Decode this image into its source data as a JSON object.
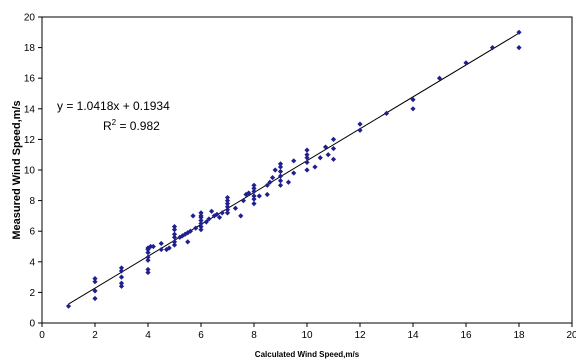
{
  "chart_data": {
    "type": "scatter",
    "title": "",
    "xlabel": "Calculated Wind Speed,m/s",
    "ylabel": "Measured Wind Speed,m/s",
    "xlim": [
      0,
      20
    ],
    "ylim": [
      0,
      20
    ],
    "xticks": [
      0,
      2,
      4,
      6,
      8,
      10,
      12,
      14,
      16,
      18,
      20
    ],
    "yticks": [
      0,
      2,
      4,
      6,
      8,
      10,
      12,
      14,
      16,
      18,
      20
    ],
    "grid": false,
    "legend": "none",
    "marker_color": "#1f1f8f",
    "line_color": "#000000",
    "trendline": {
      "slope": 1.0418,
      "intercept": 0.1934,
      "x_range": [
        1,
        18
      ]
    },
    "equation_text": "y = 1.0418x + 0.1934",
    "r2_label": "R",
    "r2_sup": "2",
    "r2_value_text": " = 0.982",
    "series": [
      {
        "points": [
          [
            1,
            1.1
          ],
          [
            2,
            1.6
          ],
          [
            2,
            2.1
          ],
          [
            2,
            2.7
          ],
          [
            2,
            2.9
          ],
          [
            3,
            2.4
          ],
          [
            3,
            2.6
          ],
          [
            3,
            3.0
          ],
          [
            3,
            3.4
          ],
          [
            3,
            3.6
          ],
          [
            4,
            3.3
          ],
          [
            4,
            3.5
          ],
          [
            4,
            4.1
          ],
          [
            4,
            4.3
          ],
          [
            4,
            4.6
          ],
          [
            4,
            4.8
          ],
          [
            4,
            4.9
          ],
          [
            4.1,
            5.0
          ],
          [
            4.2,
            5.0
          ],
          [
            4.5,
            4.8
          ],
          [
            4.5,
            5.2
          ],
          [
            4.7,
            4.8
          ],
          [
            4.8,
            4.9
          ],
          [
            5,
            5.1
          ],
          [
            5,
            5.3
          ],
          [
            5,
            5.6
          ],
          [
            5,
            5.8
          ],
          [
            5,
            6.1
          ],
          [
            5,
            6.3
          ],
          [
            5.2,
            5.6
          ],
          [
            5.3,
            5.7
          ],
          [
            5.4,
            5.8
          ],
          [
            5.5,
            5.9
          ],
          [
            5.5,
            5.3
          ],
          [
            5.6,
            6.0
          ],
          [
            5.7,
            7.0
          ],
          [
            5.8,
            6.2
          ],
          [
            6,
            6.1
          ],
          [
            6,
            6.3
          ],
          [
            6,
            6.5
          ],
          [
            6,
            6.7
          ],
          [
            6,
            6.9
          ],
          [
            6,
            7.0
          ],
          [
            6,
            7.2
          ],
          [
            6.2,
            6.6
          ],
          [
            6.3,
            6.8
          ],
          [
            6.4,
            7.3
          ],
          [
            6.5,
            7.0
          ],
          [
            6.6,
            7.1
          ],
          [
            6.7,
            6.9
          ],
          [
            6.8,
            7.2
          ],
          [
            7,
            7.2
          ],
          [
            7,
            7.4
          ],
          [
            7,
            7.6
          ],
          [
            7,
            7.8
          ],
          [
            7,
            8.0
          ],
          [
            7,
            8.2
          ],
          [
            7.3,
            7.5
          ],
          [
            7.5,
            7.0
          ],
          [
            7.6,
            8.0
          ],
          [
            7.7,
            8.4
          ],
          [
            7.8,
            8.5
          ],
          [
            8,
            7.8
          ],
          [
            8,
            8.1
          ],
          [
            8,
            8.3
          ],
          [
            8,
            8.6
          ],
          [
            8,
            8.8
          ],
          [
            8,
            9.0
          ],
          [
            8.2,
            8.3
          ],
          [
            8.5,
            8.4
          ],
          [
            8.5,
            9.0
          ],
          [
            8.6,
            9.2
          ],
          [
            8.7,
            9.5
          ],
          [
            8.8,
            10.0
          ],
          [
            9,
            9.0
          ],
          [
            9,
            9.3
          ],
          [
            9,
            9.6
          ],
          [
            9,
            9.9
          ],
          [
            9,
            10.2
          ],
          [
            9,
            10.4
          ],
          [
            9.3,
            9.2
          ],
          [
            9.5,
            9.8
          ],
          [
            9.5,
            10.6
          ],
          [
            10,
            10.0
          ],
          [
            10,
            10.5
          ],
          [
            10,
            10.8
          ],
          [
            10,
            11.0
          ],
          [
            10,
            11.3
          ],
          [
            10.3,
            10.2
          ],
          [
            10.5,
            10.8
          ],
          [
            10.7,
            11.5
          ],
          [
            10.8,
            11.0
          ],
          [
            11,
            10.7
          ],
          [
            11,
            12.0
          ],
          [
            11,
            11.4
          ],
          [
            12,
            12.6
          ],
          [
            12,
            13.0
          ],
          [
            13,
            13.7
          ],
          [
            14,
            14.0
          ],
          [
            14,
            14.6
          ],
          [
            15,
            16.0
          ],
          [
            16,
            17.0
          ],
          [
            17,
            18.0
          ],
          [
            18,
            18.0
          ],
          [
            18,
            19.0
          ]
        ]
      }
    ]
  }
}
